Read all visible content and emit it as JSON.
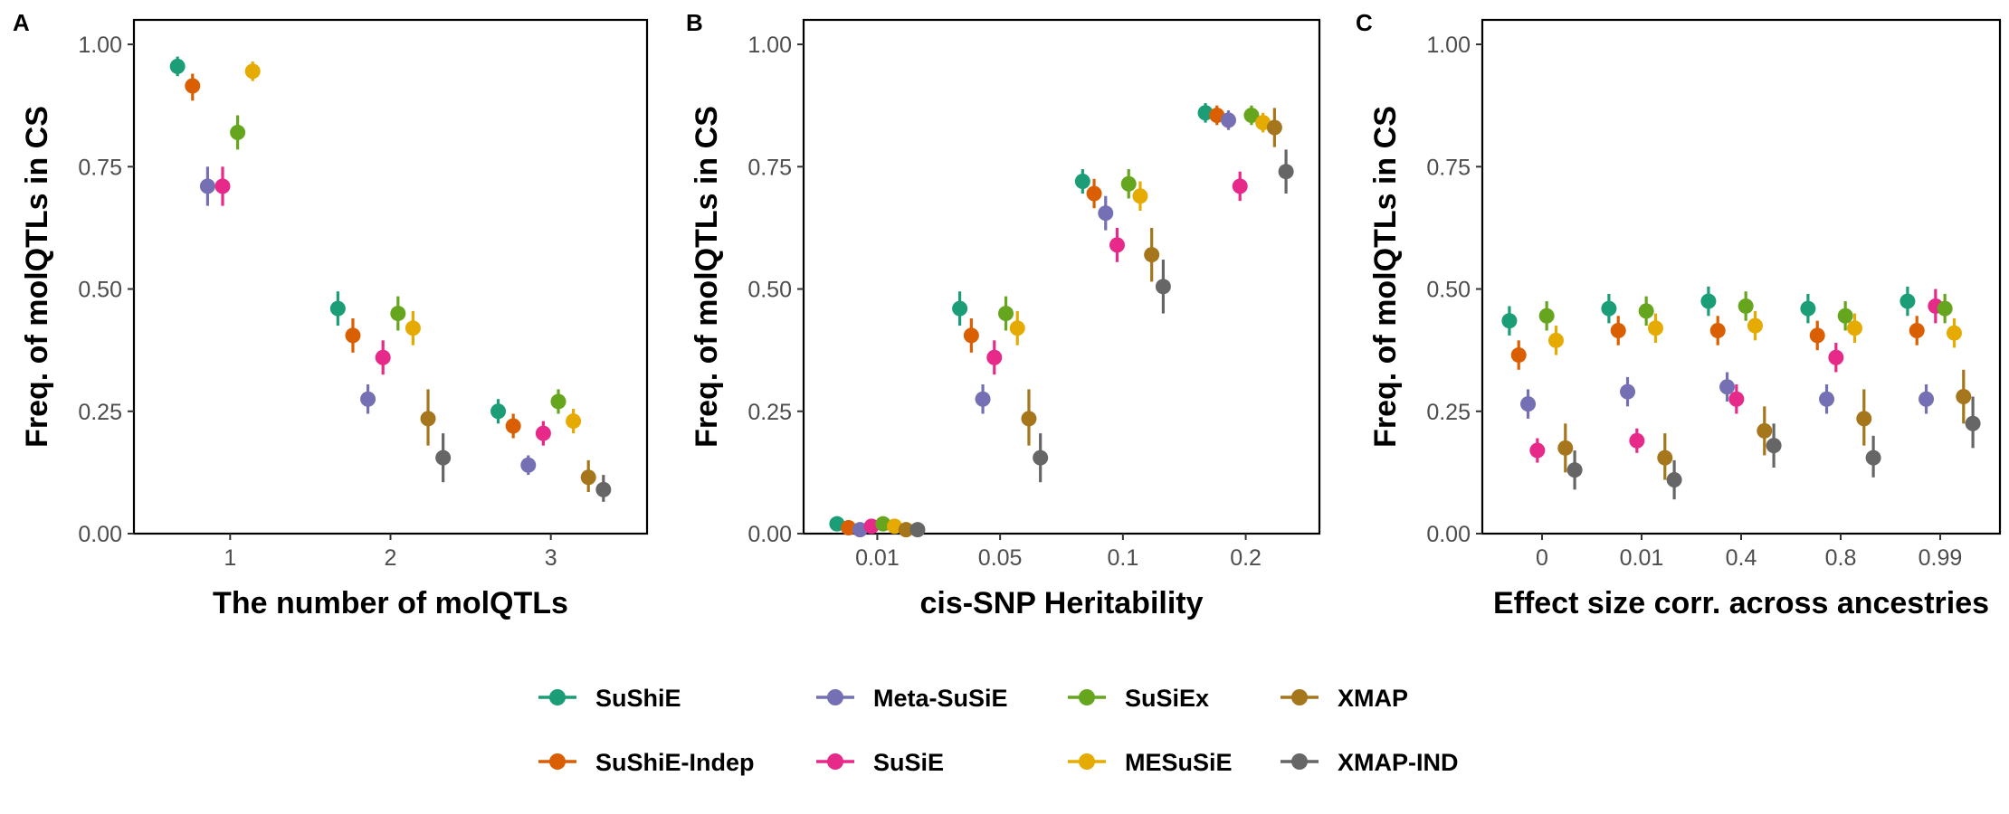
{
  "method_colors": {
    "SuShiE": "#1B9E77",
    "SuShiE-Indep": "#D95F02",
    "Meta-SuSiE": "#7570B3",
    "SuSiE": "#E7298A",
    "SuSiEx": "#66A61E",
    "MESuSiE": "#E6AB02",
    "XMAP": "#A6761D",
    "XMAP-IND": "#666666"
  },
  "legend": {
    "entries": [
      "SuShiE",
      "SuShiE-Indep",
      "Meta-SuSiE",
      "SuSiE",
      "SuSiEx",
      "MESuSiE",
      "XMAP",
      "XMAP-IND"
    ],
    "placement": "bottom"
  },
  "chart_data": [
    {
      "type": "scatter",
      "panel": "A",
      "xlabel": "The number of molQTLs",
      "ylabel": "Freq. of molQTLs in CS",
      "categories": [
        "1",
        "2",
        "3"
      ],
      "ylim": [
        0,
        1.05
      ],
      "y_ticks": [
        "0.00",
        "0.25",
        "0.50",
        "0.75",
        "1.00"
      ],
      "grid": false,
      "series": [
        {
          "name": "SuShiE",
          "values": [
            0.955,
            0.46,
            0.25
          ],
          "lower": [
            0.935,
            0.425,
            0.225
          ],
          "upper": [
            0.975,
            0.495,
            0.275
          ]
        },
        {
          "name": "SuShiE-Indep",
          "values": [
            0.915,
            0.405,
            0.22
          ],
          "lower": [
            0.885,
            0.37,
            0.195
          ],
          "upper": [
            0.94,
            0.44,
            0.245
          ]
        },
        {
          "name": "Meta-SuSiE",
          "values": [
            0.71,
            0.275,
            0.14
          ],
          "lower": [
            0.67,
            0.245,
            0.12
          ],
          "upper": [
            0.75,
            0.305,
            0.16
          ]
        },
        {
          "name": "SuSiE",
          "values": [
            0.71,
            0.36,
            0.205
          ],
          "lower": [
            0.67,
            0.325,
            0.18
          ],
          "upper": [
            0.75,
            0.395,
            0.23
          ]
        },
        {
          "name": "SuSiEx",
          "values": [
            0.82,
            0.45,
            0.27
          ],
          "lower": [
            0.785,
            0.415,
            0.245
          ],
          "upper": [
            0.855,
            0.485,
            0.295
          ]
        },
        {
          "name": "MESuSiE",
          "values": [
            0.945,
            0.42,
            0.23
          ],
          "lower": [
            0.925,
            0.385,
            0.205
          ],
          "upper": [
            0.965,
            0.455,
            0.255
          ]
        },
        {
          "name": "XMAP",
          "values": [
            null,
            0.235,
            0.115
          ],
          "lower": [
            null,
            0.18,
            0.085
          ],
          "upper": [
            null,
            0.295,
            0.15
          ]
        },
        {
          "name": "XMAP-IND",
          "values": [
            null,
            0.155,
            0.09
          ],
          "lower": [
            null,
            0.105,
            0.065
          ],
          "upper": [
            null,
            0.205,
            0.12
          ]
        }
      ]
    },
    {
      "type": "scatter",
      "panel": "B",
      "xlabel": "cis-SNP Heritability",
      "ylabel": "Freq. of molQTLs in CS",
      "categories": [
        "0.01",
        "0.05",
        "0.1",
        "0.2"
      ],
      "ylim": [
        0,
        1.05
      ],
      "y_ticks": [
        "0.00",
        "0.25",
        "0.50",
        "0.75",
        "1.00"
      ],
      "grid": false,
      "series": [
        {
          "name": "SuShiE",
          "values": [
            0.02,
            0.46,
            0.72,
            0.86
          ],
          "lower": [
            0.012,
            0.425,
            0.695,
            0.84
          ],
          "upper": [
            0.028,
            0.495,
            0.745,
            0.88
          ]
        },
        {
          "name": "SuShiE-Indep",
          "values": [
            0.012,
            0.405,
            0.695,
            0.855
          ],
          "lower": [
            0.006,
            0.37,
            0.665,
            0.835
          ],
          "upper": [
            0.018,
            0.44,
            0.725,
            0.875
          ]
        },
        {
          "name": "Meta-SuSiE",
          "values": [
            0.008,
            0.275,
            0.655,
            0.845
          ],
          "lower": [
            0.003,
            0.245,
            0.62,
            0.825
          ],
          "upper": [
            0.013,
            0.305,
            0.69,
            0.865
          ]
        },
        {
          "name": "SuSiE",
          "values": [
            0.015,
            0.36,
            0.59,
            0.71
          ],
          "lower": [
            0.008,
            0.325,
            0.555,
            0.68
          ],
          "upper": [
            0.022,
            0.395,
            0.625,
            0.74
          ]
        },
        {
          "name": "SuSiEx",
          "values": [
            0.02,
            0.45,
            0.715,
            0.855
          ],
          "lower": [
            0.012,
            0.415,
            0.685,
            0.835
          ],
          "upper": [
            0.028,
            0.485,
            0.745,
            0.875
          ]
        },
        {
          "name": "MESuSiE",
          "values": [
            0.015,
            0.42,
            0.69,
            0.84
          ],
          "lower": [
            0.008,
            0.385,
            0.66,
            0.82
          ],
          "upper": [
            0.022,
            0.455,
            0.72,
            0.86
          ]
        },
        {
          "name": "XMAP",
          "values": [
            0.008,
            0.235,
            0.57,
            0.83
          ],
          "lower": [
            0.003,
            0.18,
            0.515,
            0.79
          ],
          "upper": [
            0.013,
            0.295,
            0.625,
            0.87
          ]
        },
        {
          "name": "XMAP-IND",
          "values": [
            0.008,
            0.155,
            0.505,
            0.74
          ],
          "lower": [
            0.003,
            0.105,
            0.45,
            0.695
          ],
          "upper": [
            0.013,
            0.205,
            0.56,
            0.785
          ]
        }
      ]
    },
    {
      "type": "scatter",
      "panel": "C",
      "xlabel": "Effect size corr. across ancestries",
      "ylabel": "Freq. of molQTLs in CS",
      "categories": [
        "0",
        "0.01",
        "0.4",
        "0.8",
        "0.99"
      ],
      "ylim": [
        0,
        1.05
      ],
      "y_ticks": [
        "0.00",
        "0.25",
        "0.50",
        "0.75",
        "1.00"
      ],
      "grid": false,
      "series": [
        {
          "name": "SuShiE",
          "values": [
            0.435,
            0.46,
            0.475,
            0.46,
            0.475
          ],
          "lower": [
            0.405,
            0.43,
            0.445,
            0.43,
            0.445
          ],
          "upper": [
            0.465,
            0.49,
            0.505,
            0.49,
            0.505
          ]
        },
        {
          "name": "SuShiE-Indep",
          "values": [
            0.365,
            0.415,
            0.415,
            0.405,
            0.415
          ],
          "lower": [
            0.335,
            0.385,
            0.385,
            0.375,
            0.385
          ],
          "upper": [
            0.395,
            0.445,
            0.445,
            0.435,
            0.445
          ]
        },
        {
          "name": "Meta-SuSiE",
          "values": [
            0.265,
            0.29,
            0.3,
            0.275,
            0.275
          ],
          "lower": [
            0.235,
            0.26,
            0.27,
            0.245,
            0.245
          ],
          "upper": [
            0.295,
            0.32,
            0.33,
            0.305,
            0.305
          ]
        },
        {
          "name": "SuSiE",
          "values": [
            0.17,
            0.19,
            0.275,
            0.36,
            0.465
          ],
          "lower": [
            0.145,
            0.165,
            0.245,
            0.33,
            0.43
          ],
          "upper": [
            0.195,
            0.215,
            0.305,
            0.39,
            0.5
          ]
        },
        {
          "name": "SuSiEx",
          "values": [
            0.445,
            0.455,
            0.465,
            0.445,
            0.46
          ],
          "lower": [
            0.415,
            0.425,
            0.435,
            0.415,
            0.43
          ],
          "upper": [
            0.475,
            0.485,
            0.495,
            0.475,
            0.49
          ]
        },
        {
          "name": "MESuSiE",
          "values": [
            0.395,
            0.42,
            0.425,
            0.42,
            0.41
          ],
          "lower": [
            0.365,
            0.39,
            0.395,
            0.39,
            0.38
          ],
          "upper": [
            0.425,
            0.45,
            0.455,
            0.45,
            0.44
          ]
        },
        {
          "name": "XMAP",
          "values": [
            0.175,
            0.155,
            0.21,
            0.235,
            0.28
          ],
          "lower": [
            0.125,
            0.11,
            0.16,
            0.18,
            0.225
          ],
          "upper": [
            0.225,
            0.205,
            0.26,
            0.295,
            0.335
          ]
        },
        {
          "name": "XMAP-IND",
          "values": [
            0.13,
            0.11,
            0.18,
            0.155,
            0.225
          ],
          "lower": [
            0.09,
            0.07,
            0.135,
            0.115,
            0.175
          ],
          "upper": [
            0.17,
            0.15,
            0.225,
            0.2,
            0.28
          ]
        }
      ]
    }
  ]
}
